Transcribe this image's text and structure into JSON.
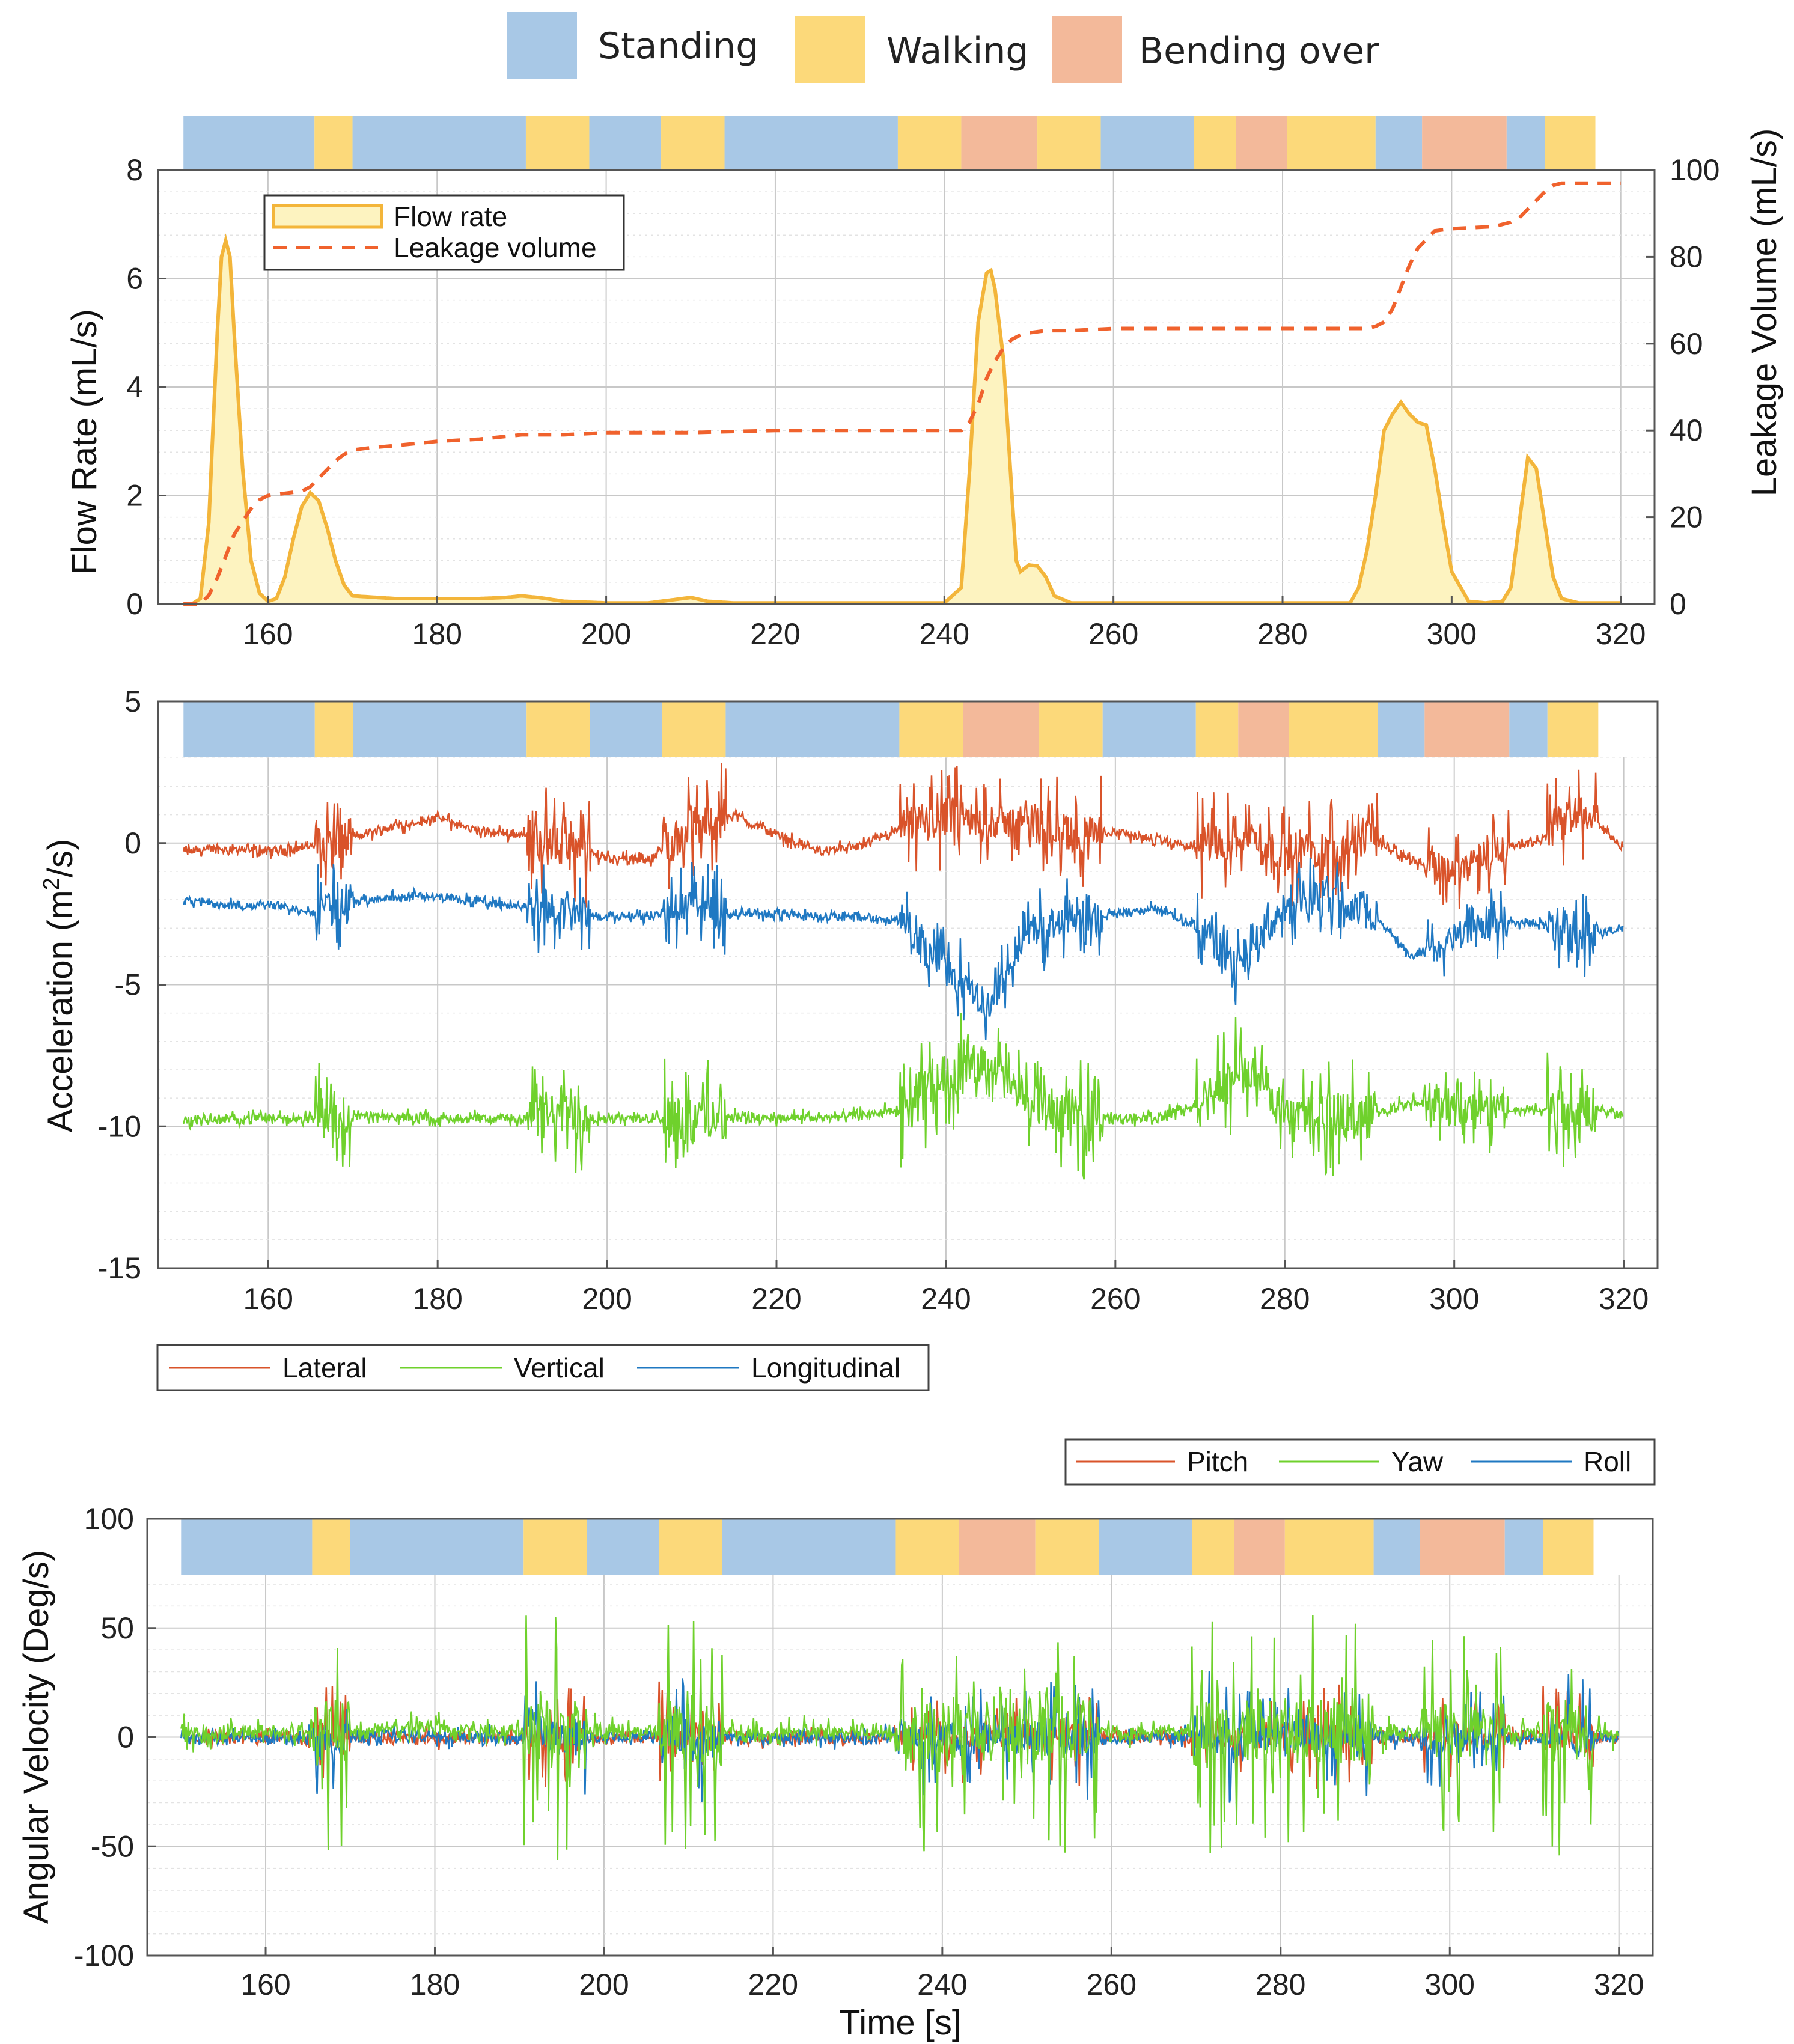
{
  "colors": {
    "standing": "#a8c8e6",
    "walking": "#fcd97a",
    "bending": "#f3b99a",
    "flow_line": "#f3b53a",
    "flow_fill": "#fdf3c0",
    "leakage": "#f0622d",
    "lateral": "#d9532a",
    "vertical": "#6fd12c",
    "longitudinal": "#1f78c2",
    "pitch": "#d9532a",
    "yaw": "#6fd12c",
    "roll": "#1f78c2"
  },
  "activity_legend": [
    {
      "key": "standing",
      "label": "Standing"
    },
    {
      "key": "walking",
      "label": "Walking"
    },
    {
      "key": "bending",
      "label": "Bending over"
    }
  ],
  "activity_segments": [
    {
      "start": 150.0,
      "end": 165.5,
      "activity": "standing"
    },
    {
      "start": 165.5,
      "end": 170.0,
      "activity": "walking"
    },
    {
      "start": 170.0,
      "end": 190.5,
      "activity": "standing"
    },
    {
      "start": 190.5,
      "end": 198.0,
      "activity": "walking"
    },
    {
      "start": 198.0,
      "end": 206.5,
      "activity": "standing"
    },
    {
      "start": 206.5,
      "end": 214.0,
      "activity": "walking"
    },
    {
      "start": 214.0,
      "end": 234.5,
      "activity": "standing"
    },
    {
      "start": 234.5,
      "end": 242.0,
      "activity": "walking"
    },
    {
      "start": 242.0,
      "end": 251.0,
      "activity": "bending"
    },
    {
      "start": 251.0,
      "end": 258.5,
      "activity": "walking"
    },
    {
      "start": 258.5,
      "end": 269.5,
      "activity": "standing"
    },
    {
      "start": 269.5,
      "end": 274.5,
      "activity": "walking"
    },
    {
      "start": 274.5,
      "end": 280.5,
      "activity": "bending"
    },
    {
      "start": 280.5,
      "end": 291.0,
      "activity": "walking"
    },
    {
      "start": 291.0,
      "end": 296.5,
      "activity": "standing"
    },
    {
      "start": 296.5,
      "end": 306.5,
      "activity": "bending"
    },
    {
      "start": 306.5,
      "end": 311.0,
      "activity": "standing"
    },
    {
      "start": 311.0,
      "end": 317.0,
      "activity": "walking"
    }
  ],
  "chart_data": [
    {
      "type": "area",
      "id": "flow",
      "xlabel": "",
      "ylabel": "Flow Rate (mL/s)",
      "y2label": "Leakage Volume (mL/s)",
      "xlim": [
        147,
        324
      ],
      "ylim": [
        0,
        8
      ],
      "y2lim": [
        0,
        100
      ],
      "xticks": [
        "160",
        "180",
        "200",
        "220",
        "240",
        "260",
        "280",
        "300",
        "320"
      ],
      "yticks": [
        "0",
        "2",
        "4",
        "6",
        "8"
      ],
      "y2ticks": [
        "0",
        "20",
        "40",
        "60",
        "80",
        "100"
      ],
      "legend": {
        "position": "top-left",
        "flow_label": "Flow rate",
        "leak_label": "Leakage volume"
      },
      "series": [
        {
          "name": "Flow rate",
          "axis": "left",
          "style": "filled",
          "x": [
            150,
            151,
            152,
            153,
            154,
            154.5,
            155,
            155.5,
            156,
            157,
            158,
            159,
            160,
            161,
            162,
            163,
            164,
            165,
            166,
            167,
            168,
            169,
            170,
            175,
            180,
            185,
            188,
            190,
            192,
            195,
            200,
            205,
            208,
            210,
            212,
            215,
            220,
            225,
            230,
            235,
            240,
            242,
            243,
            244,
            245,
            245.5,
            246,
            247,
            248,
            248.5,
            249,
            250,
            251,
            252,
            253,
            255,
            260,
            270,
            280,
            288,
            289,
            290,
            291,
            292,
            293,
            294,
            295,
            296,
            297,
            298,
            299,
            300,
            302,
            304,
            306,
            307,
            308,
            309,
            310,
            311,
            312,
            313,
            315,
            318,
            320
          ],
          "y": [
            0,
            0,
            0.1,
            1.5,
            5,
            6.4,
            6.7,
            6.4,
            5,
            2.5,
            0.8,
            0.2,
            0.05,
            0.1,
            0.5,
            1.2,
            1.8,
            2.05,
            1.9,
            1.4,
            0.8,
            0.35,
            0.15,
            0.1,
            0.1,
            0.1,
            0.12,
            0.15,
            0.12,
            0.05,
            0.02,
            0.02,
            0.08,
            0.12,
            0.05,
            0.02,
            0.02,
            0.02,
            0.02,
            0.02,
            0.02,
            0.3,
            2.5,
            5.2,
            6.1,
            6.15,
            5.8,
            4.5,
            2.0,
            0.8,
            0.6,
            0.72,
            0.7,
            0.5,
            0.15,
            0.02,
            0.02,
            0.02,
            0.02,
            0.02,
            0.3,
            1.0,
            2.0,
            3.2,
            3.5,
            3.72,
            3.5,
            3.35,
            3.3,
            2.5,
            1.5,
            0.6,
            0.05,
            0.02,
            0.05,
            0.3,
            1.5,
            2.7,
            2.5,
            1.5,
            0.5,
            0.1,
            0.02,
            0.02,
            0.02
          ]
        },
        {
          "name": "Leakage volume",
          "axis": "right",
          "style": "dashed",
          "x": [
            150,
            152,
            153,
            154,
            155,
            156,
            157,
            158,
            159,
            160,
            162,
            164,
            165,
            166,
            167,
            168,
            169,
            170,
            172,
            175,
            180,
            185,
            190,
            195,
            200,
            210,
            220,
            230,
            240,
            242,
            243,
            244,
            245,
            246,
            247,
            248,
            249,
            250,
            252,
            255,
            260,
            270,
            280,
            290,
            291,
            292,
            293,
            294,
            295,
            296,
            297,
            298,
            300,
            305,
            306,
            307,
            308,
            309,
            310,
            311,
            312,
            313,
            315,
            318,
            320
          ],
          "y": [
            0,
            0,
            2,
            6,
            11,
            16,
            19,
            22,
            24,
            25,
            25.5,
            26,
            27,
            29,
            31,
            33,
            34.5,
            35.5,
            36,
            36.5,
            37.5,
            38,
            39,
            39,
            39.5,
            39.5,
            40,
            40,
            40,
            40,
            42,
            46,
            52,
            56,
            59,
            61,
            62,
            62.5,
            63,
            63,
            63.5,
            63.5,
            63.5,
            63.5,
            64,
            65,
            68,
            73,
            78,
            82,
            84,
            86,
            86.5,
            87,
            87.5,
            88,
            89,
            91,
            93,
            95,
            96.5,
            97,
            97,
            97,
            97
          ]
        }
      ]
    },
    {
      "type": "line",
      "id": "accel",
      "xlabel": "",
      "ylabel": "Acceleration (m2/s)",
      "ylabel_main": "Acceleration (m",
      "ylabel_sup": "2",
      "ylabel_tail": "/s)",
      "xlim": [
        147,
        324
      ],
      "ylim": [
        -15,
        5
      ],
      "xticks": [
        "160",
        "180",
        "200",
        "220",
        "240",
        "260",
        "280",
        "300",
        "320"
      ],
      "yticks": [
        "-15",
        "-10",
        "-5",
        "0",
        "5"
      ],
      "legend": {
        "position": "bottom-left",
        "labels": [
          "Lateral",
          "Vertical",
          "Longitudinal"
        ]
      },
      "series": [
        {
          "name": "Lateral",
          "x": [
            150,
            155,
            160,
            165,
            170,
            175,
            180,
            185,
            190,
            195,
            200,
            205,
            210,
            215,
            220,
            225,
            230,
            235,
            240,
            245,
            250,
            255,
            260,
            265,
            270,
            275,
            280,
            285,
            290,
            295,
            300,
            305,
            310,
            315,
            320
          ],
          "y": [
            -0.3,
            -0.2,
            -0.3,
            -0.1,
            0.2,
            0.6,
            0.9,
            0.4,
            0.3,
            -0.2,
            -0.5,
            -0.6,
            0.6,
            1.0,
            0.3,
            -0.3,
            -0.1,
            0.5,
            0.9,
            0.7,
            0.8,
            0.3,
            0.4,
            0.1,
            -0.2,
            0.3,
            -0.3,
            -0.2,
            0.2,
            -0.6,
            -1.0,
            -0.2,
            0.1,
            1.3,
            -0.2
          ]
        },
        {
          "name": "Vertical",
          "x": [
            150,
            155,
            160,
            165,
            170,
            175,
            180,
            185,
            190,
            195,
            200,
            205,
            210,
            215,
            220,
            225,
            230,
            235,
            240,
            245,
            250,
            255,
            260,
            265,
            270,
            275,
            280,
            285,
            290,
            295,
            300,
            305,
            310,
            315,
            320
          ],
          "y": [
            -9.8,
            -9.75,
            -9.7,
            -9.7,
            -9.6,
            -9.7,
            -9.7,
            -9.75,
            -9.7,
            -9.6,
            -9.7,
            -9.7,
            -9.6,
            -9.7,
            -9.7,
            -9.7,
            -9.6,
            -9.4,
            -8.2,
            -7.7,
            -9.3,
            -9.6,
            -9.7,
            -9.7,
            -9.2,
            -7.8,
            -9.5,
            -9.6,
            -9.7,
            -9.1,
            -9.3,
            -9.5,
            -9.4,
            -9.4,
            -9.5
          ]
        },
        {
          "name": "Longitudinal",
          "x": [
            150,
            155,
            160,
            165,
            170,
            175,
            180,
            185,
            190,
            195,
            200,
            205,
            210,
            215,
            220,
            225,
            230,
            235,
            240,
            245,
            250,
            255,
            260,
            265,
            270,
            275,
            280,
            285,
            290,
            295,
            300,
            305,
            310,
            315,
            320
          ],
          "y": [
            -2.0,
            -2.2,
            -2.2,
            -2.4,
            -2.1,
            -1.9,
            -1.9,
            -2.1,
            -2.2,
            -2.4,
            -2.6,
            -2.6,
            -2.2,
            -2.5,
            -2.5,
            -2.6,
            -2.6,
            -2.8,
            -4.5,
            -5.8,
            -3.0,
            -2.6,
            -2.5,
            -2.3,
            -3.0,
            -4.5,
            -2.3,
            -1.8,
            -2.4,
            -4.0,
            -3.3,
            -2.9,
            -2.8,
            -3.3,
            -3.0
          ]
        }
      ]
    },
    {
      "type": "line",
      "id": "gyro",
      "xlabel": "Time [s]",
      "ylabel": "Angular Velocity (Deg/s)",
      "xlim": [
        146,
        324
      ],
      "ylim": [
        -100,
        100
      ],
      "xticks": [
        "160",
        "180",
        "200",
        "220",
        "240",
        "260",
        "280",
        "300",
        "320"
      ],
      "yticks": [
        "-100",
        "-50",
        "0",
        "50",
        "100"
      ],
      "legend": {
        "position": "top-right",
        "labels": [
          "Pitch",
          "Yaw",
          "Roll"
        ]
      },
      "series": [
        {
          "name": "Pitch",
          "x": [
            150,
            160,
            170,
            180,
            190,
            200,
            210,
            220,
            230,
            240,
            250,
            260,
            270,
            280,
            290,
            300,
            310,
            320
          ],
          "y": [
            0,
            0,
            0,
            0,
            0,
            0,
            0,
            0,
            0,
            0,
            0,
            0,
            0,
            0,
            0,
            0,
            0,
            0
          ]
        },
        {
          "name": "Yaw",
          "x": [
            150,
            160,
            170,
            180,
            190,
            200,
            210,
            220,
            230,
            240,
            250,
            260,
            270,
            280,
            290,
            300,
            310,
            320
          ],
          "y": [
            2,
            2,
            3,
            4,
            3,
            2,
            2,
            1,
            3,
            2,
            4,
            2,
            2,
            3,
            2,
            2,
            2,
            2
          ]
        },
        {
          "name": "Roll",
          "x": [
            150,
            160,
            170,
            180,
            190,
            200,
            210,
            220,
            230,
            240,
            250,
            260,
            270,
            280,
            290,
            300,
            310,
            320
          ],
          "y": [
            0,
            0,
            0,
            0,
            0,
            0,
            0,
            0,
            0,
            0,
            0,
            0,
            0,
            0,
            0,
            0,
            0,
            0
          ]
        }
      ]
    }
  ]
}
